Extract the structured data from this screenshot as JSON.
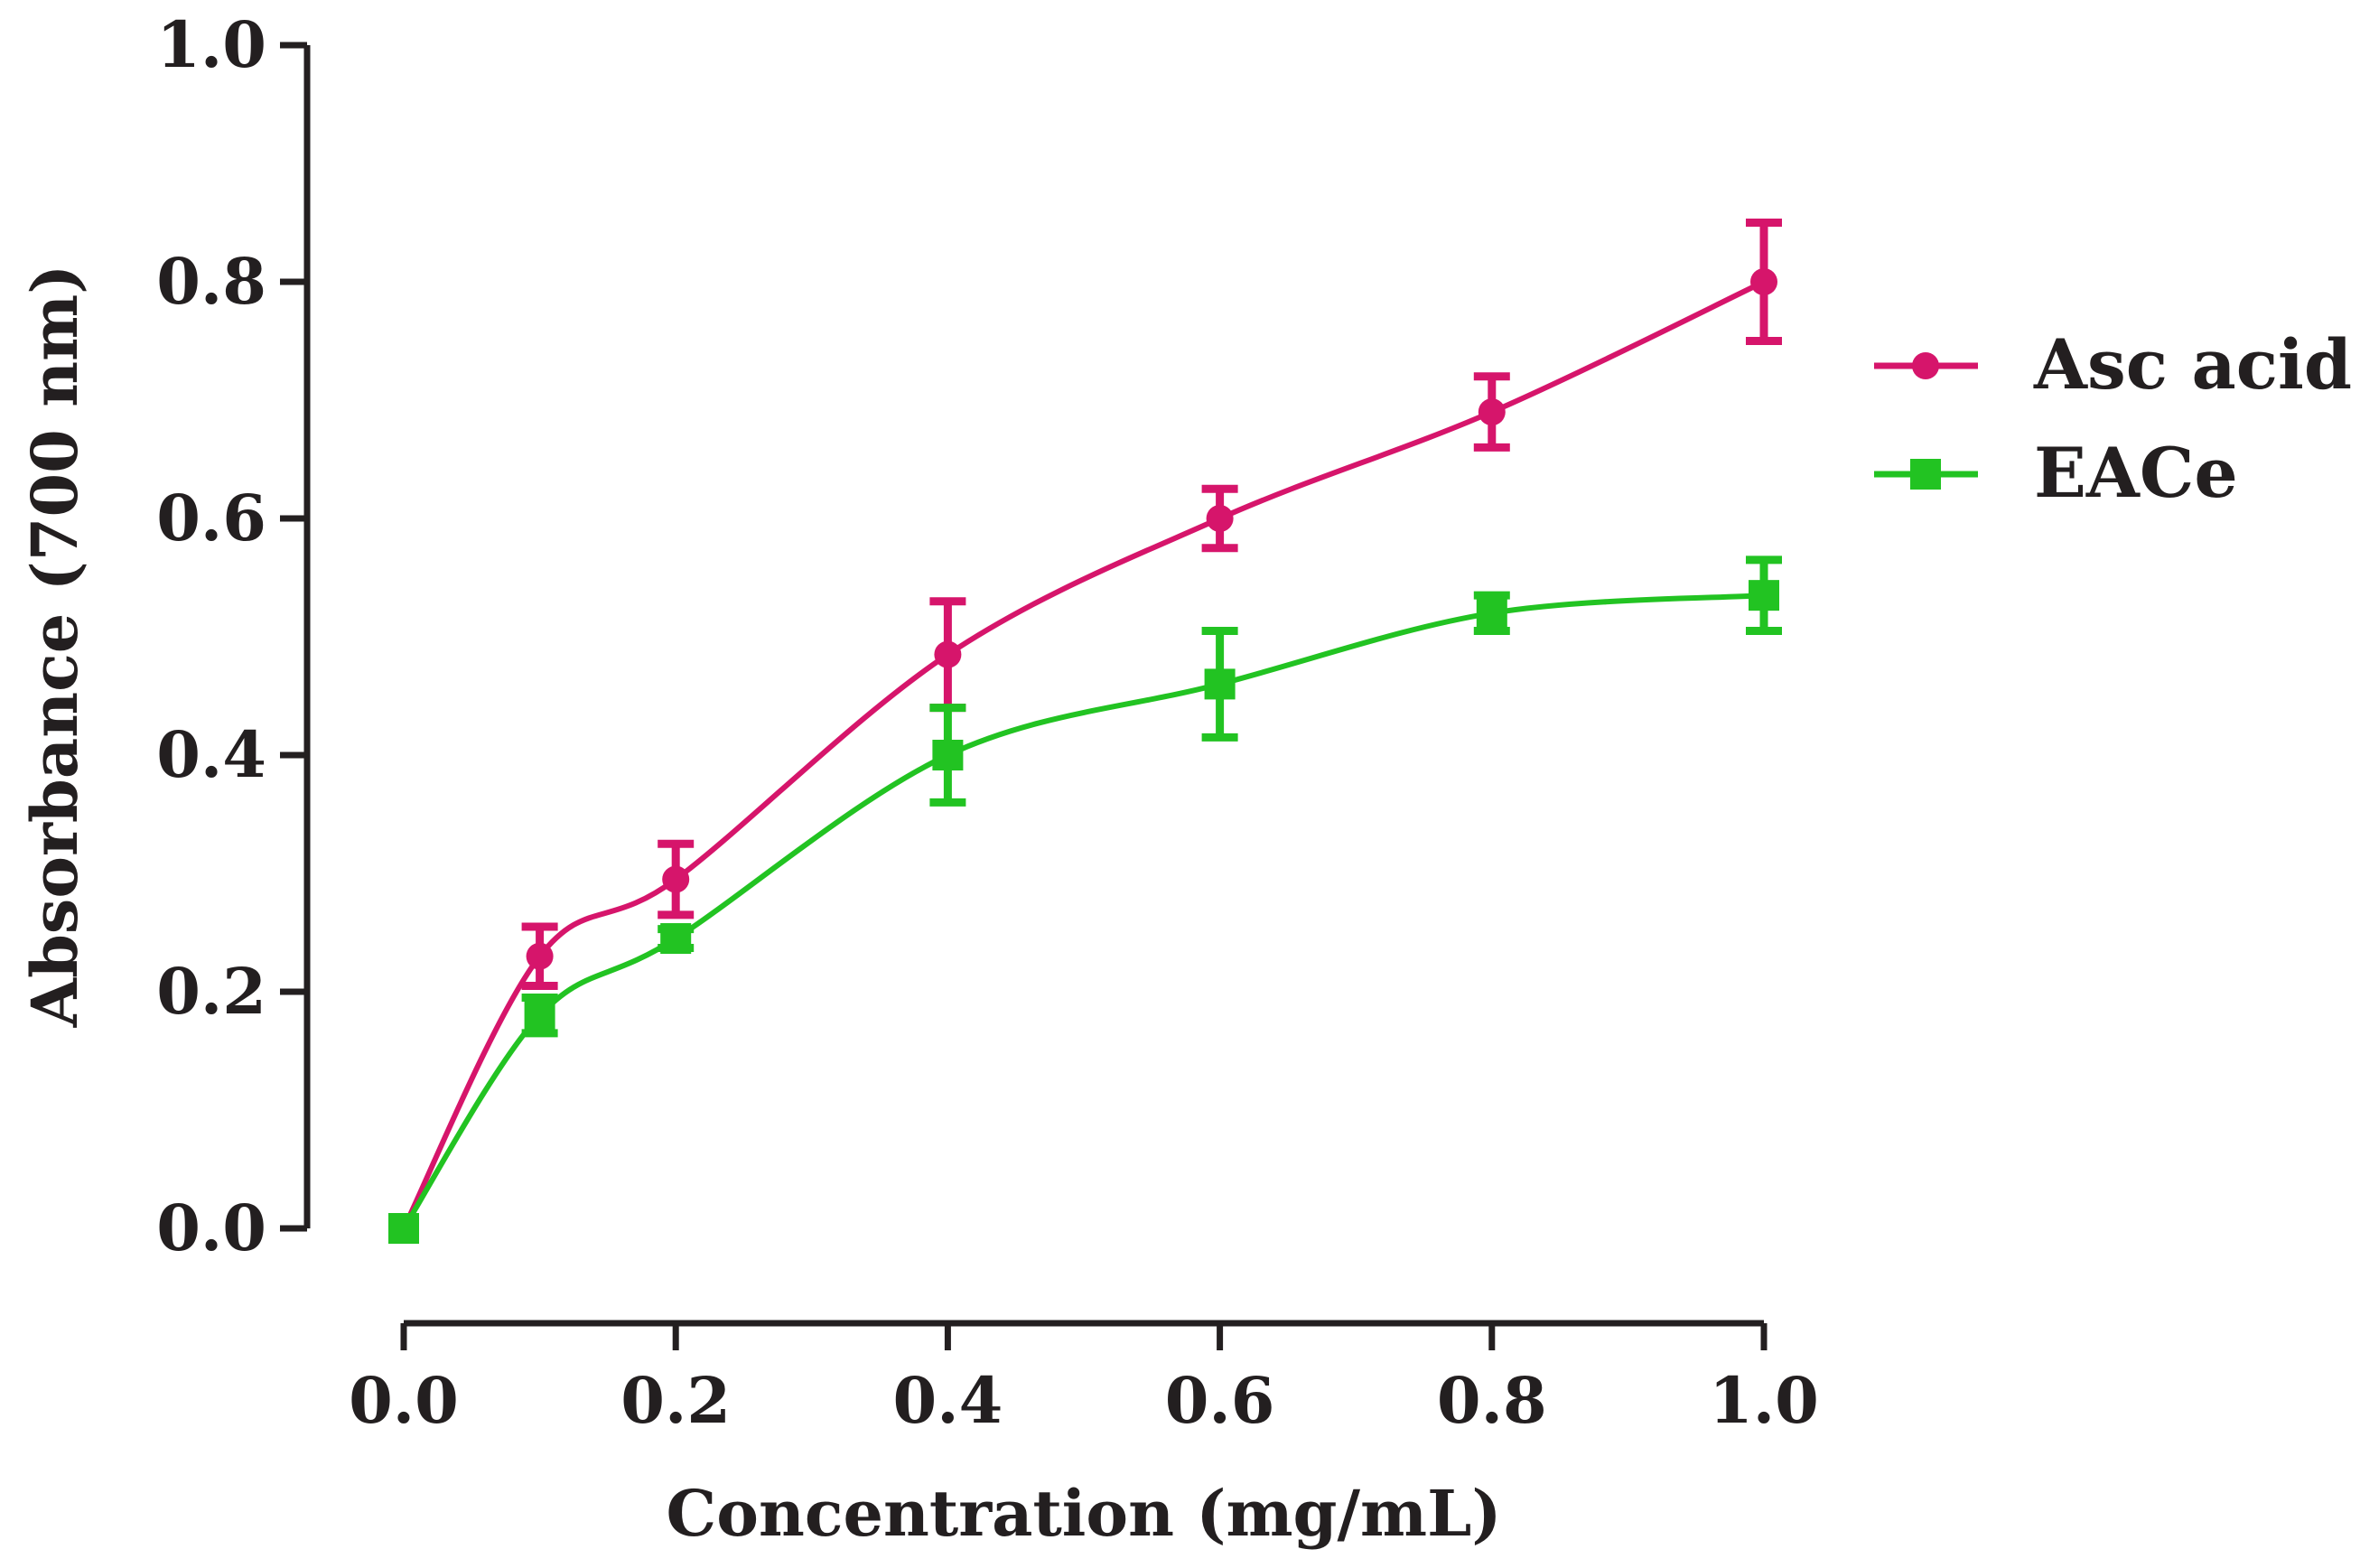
{
  "chart_data": {
    "type": "line",
    "title": "",
    "xlabel": "Concentration (mg/mL)",
    "ylabel": "Absorbance (700 nm)",
    "xlim": [
      0.0,
      1.0
    ],
    "ylim": [
      0.0,
      1.0
    ],
    "x_ticks": [
      "0.0",
      "0.2",
      "0.4",
      "0.6",
      "0.8",
      "1.0"
    ],
    "y_ticks": [
      "0.0",
      "0.2",
      "0.4",
      "0.6",
      "0.8",
      "1.0"
    ],
    "x": [
      0.0,
      0.1,
      0.2,
      0.4,
      0.6,
      0.8,
      1.0
    ],
    "legend_position": "right",
    "series": [
      {
        "name": "Asc acid",
        "color": "#d6156b",
        "marker": "circle",
        "values": [
          0.0,
          0.23,
          0.295,
          0.485,
          0.6,
          0.69,
          0.8
        ],
        "errors": [
          0.0,
          0.025,
          0.03,
          0.045,
          0.025,
          0.03,
          0.05
        ]
      },
      {
        "name": "EACe",
        "color": "#22c322",
        "marker": "square",
        "values": [
          0.0,
          0.18,
          0.245,
          0.4,
          0.46,
          0.52,
          0.535
        ],
        "errors": [
          0.0,
          0.015,
          0.008,
          0.04,
          0.045,
          0.015,
          0.03
        ]
      }
    ],
    "grid": false
  }
}
